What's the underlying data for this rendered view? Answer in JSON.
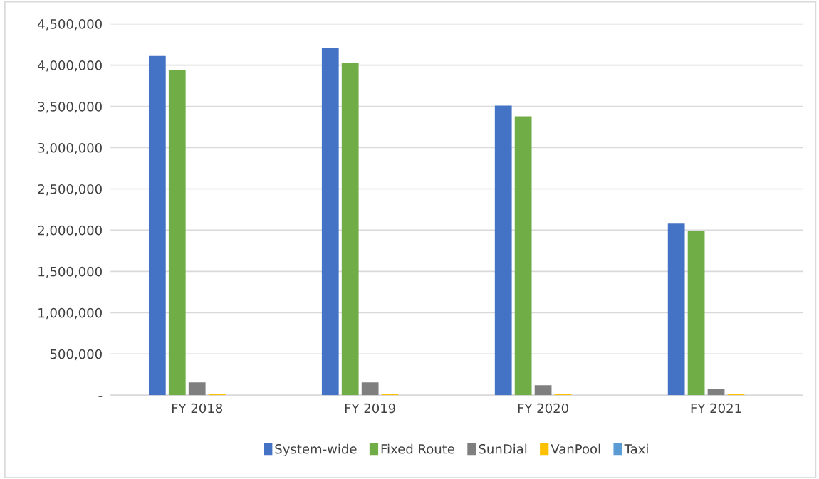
{
  "chart_data": {
    "type": "bar",
    "categories": [
      "FY 2018",
      "FY 2019",
      "FY 2020",
      "FY 2021"
    ],
    "series": [
      {
        "name": "System-wide",
        "color": "#4472c4",
        "values": [
          4120000,
          4210000,
          3510000,
          2080000
        ]
      },
      {
        "name": "Fixed Route",
        "color": "#70ad47",
        "values": [
          3940000,
          4030000,
          3380000,
          1990000
        ]
      },
      {
        "name": "SunDial",
        "color": "#7f7f7f",
        "values": [
          156000,
          156000,
          120000,
          70000
        ]
      },
      {
        "name": "VanPool",
        "color": "#ffc000",
        "values": [
          17000,
          20000,
          13000,
          12000
        ]
      },
      {
        "name": "Taxi",
        "color": "#5b9bd5",
        "values": [
          0,
          0,
          0,
          0
        ]
      }
    ],
    "ylim": [
      0,
      4500000
    ],
    "yticks": [
      {
        "value": 0,
        "label": "-"
      },
      {
        "value": 500000,
        "label": "500,000"
      },
      {
        "value": 1000000,
        "label": "1,000,000"
      },
      {
        "value": 1500000,
        "label": "1,500,000"
      },
      {
        "value": 2000000,
        "label": "2,000,000"
      },
      {
        "value": 2500000,
        "label": "2,500,000"
      },
      {
        "value": 3000000,
        "label": "3,000,000"
      },
      {
        "value": 3500000,
        "label": "3,500,000"
      },
      {
        "value": 4000000,
        "label": "4,000,000"
      },
      {
        "value": 4500000,
        "label": "4,500,000"
      }
    ],
    "grid": "y",
    "legend": "bottom"
  }
}
